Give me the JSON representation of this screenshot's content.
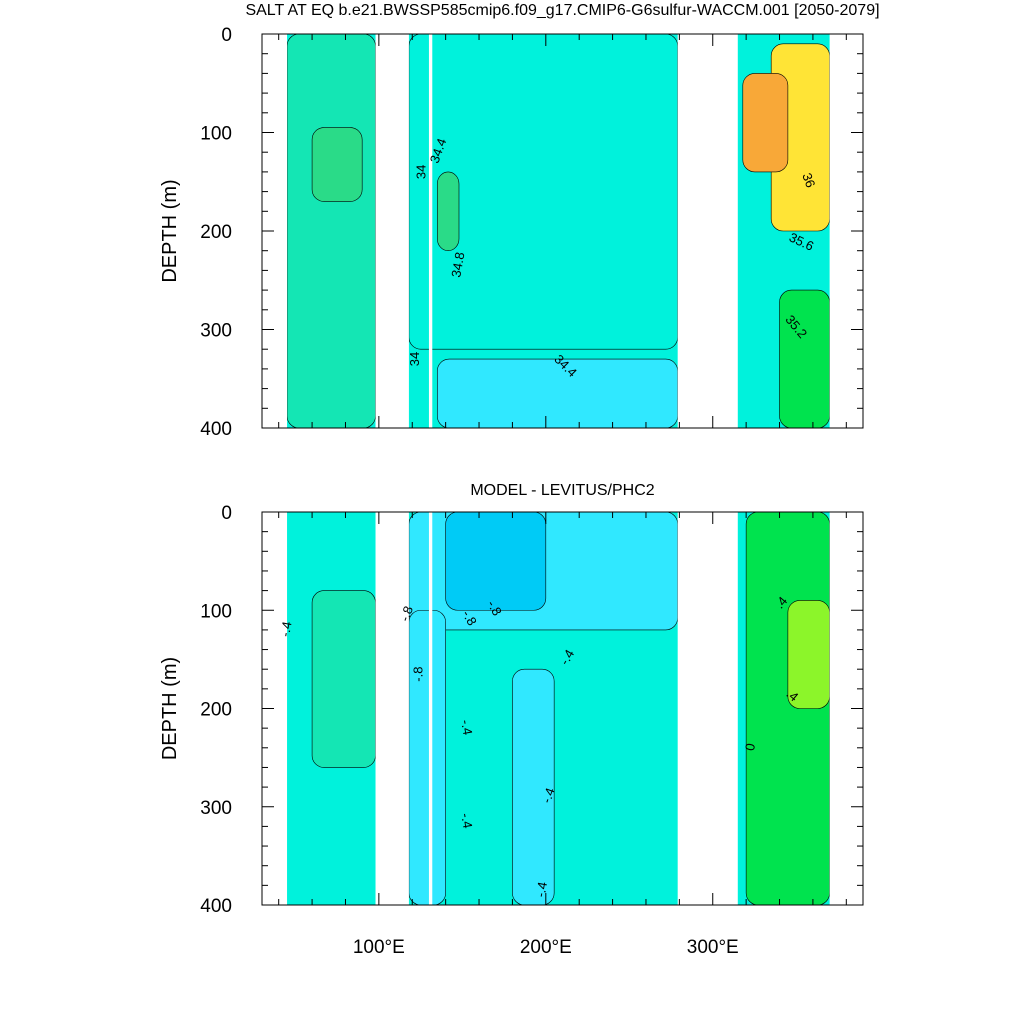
{
  "chart_data": [
    {
      "type": "heatmap",
      "title": "SALT AT EQ b.e21.BWSSP585cmip6.f09_g17.CMIP6-G6sulfur-WACCM.001 [2050-2079]",
      "xlabel": "",
      "ylabel": "DEPTH (m)",
      "xlim": [
        30,
        390
      ],
      "ylim": [
        400,
        0
      ],
      "x_ticks": [
        {
          "v": 100,
          "t": "100"
        },
        {
          "v": 200,
          "t": "200"
        },
        {
          "v": 300,
          "t": "300"
        }
      ],
      "y_ticks": [
        {
          "v": 0,
          "t": "0"
        },
        {
          "v": 100,
          "t": "100"
        },
        {
          "v": 200,
          "t": "200"
        },
        {
          "v": 300,
          "t": "300"
        },
        {
          "v": 400,
          "t": "400"
        }
      ],
      "show_x_tick_labels": false,
      "land_gaps_lon": [
        [
          30,
          45
        ],
        [
          98,
          118
        ],
        [
          130,
          132
        ],
        [
          279,
          315
        ],
        [
          370,
          390
        ]
      ],
      "base_color": "#00f2dc",
      "regions": [
        {
          "name": "western-indian-background",
          "color": "#14e6b4",
          "lon": [
            45,
            98
          ],
          "depth": [
            0,
            400
          ]
        },
        {
          "name": "indian-high-salinity-core",
          "color": "#2adb88",
          "lon": [
            60,
            90
          ],
          "depth": [
            95,
            170
          ]
        },
        {
          "name": "pacific-upper-layer",
          "color": "#00f2dc",
          "lon": [
            118,
            279
          ],
          "depth": [
            0,
            320
          ]
        },
        {
          "name": "pacific-deep-layer",
          "color": "#30e8ff",
          "lon": [
            135,
            279
          ],
          "depth": [
            330,
            400
          ]
        },
        {
          "name": "pacific-western-core",
          "color": "#2adb88",
          "lon": [
            135,
            148
          ],
          "depth": [
            140,
            220
          ]
        },
        {
          "name": "atlantic-green-deep",
          "color": "#00e34e",
          "lon": [
            340,
            370
          ],
          "depth": [
            260,
            400
          ]
        },
        {
          "name": "atlantic-yellow-upper",
          "color": "#ffe436",
          "lon": [
            335,
            370
          ],
          "depth": [
            10,
            200
          ]
        },
        {
          "name": "atlantic-orange-core",
          "color": "#f8a838",
          "lon": [
            318,
            345
          ],
          "depth": [
            40,
            140
          ]
        }
      ],
      "contour_labels": [
        {
          "text": "34.4",
          "lon": 138,
          "depth": 120,
          "rot": -70
        },
        {
          "text": "34",
          "lon": 128,
          "depth": 140,
          "rot": -90
        },
        {
          "text": "34.8",
          "lon": 150,
          "depth": 235,
          "rot": -80
        },
        {
          "text": "34",
          "lon": 124,
          "depth": 330,
          "rot": -90
        },
        {
          "text": "34.4",
          "lon": 210,
          "depth": 340,
          "rot": 45
        },
        {
          "text": "36",
          "lon": 355,
          "depth": 150,
          "rot": 70
        },
        {
          "text": "35.6",
          "lon": 352,
          "depth": 215,
          "rot": 25
        },
        {
          "text": "35.2",
          "lon": 348,
          "depth": 300,
          "rot": 50
        }
      ]
    },
    {
      "type": "heatmap",
      "title": "MODEL - LEVITUS/PHC2",
      "xlabel": "",
      "ylabel": "DEPTH (m)",
      "xlim": [
        30,
        390
      ],
      "ylim": [
        400,
        0
      ],
      "x_ticks": [
        {
          "v": 100,
          "t": "100"
        },
        {
          "v": 200,
          "t": "200"
        },
        {
          "v": 300,
          "t": "300"
        }
      ],
      "y_ticks": [
        {
          "v": 0,
          "t": "0"
        },
        {
          "v": 100,
          "t": "100"
        },
        {
          "v": 200,
          "t": "200"
        },
        {
          "v": 300,
          "t": "300"
        },
        {
          "v": 400,
          "t": "400"
        }
      ],
      "show_x_tick_labels": true,
      "x_tick_suffix": "°E",
      "land_gaps_lon": [
        [
          30,
          45
        ],
        [
          98,
          118
        ],
        [
          130,
          132
        ],
        [
          279,
          315
        ],
        [
          370,
          390
        ]
      ],
      "base_color": "#00f2dc",
      "regions": [
        {
          "name": "indian-anomaly-core",
          "color": "#14e6b4",
          "lon": [
            60,
            98
          ],
          "depth": [
            80,
            260
          ]
        },
        {
          "name": "pacific-negative-upper",
          "color": "#30e8ff",
          "lon": [
            118,
            279
          ],
          "depth": [
            0,
            120
          ]
        },
        {
          "name": "pacific-strong-negative",
          "color": "#00cbf6",
          "lon": [
            140,
            200
          ],
          "depth": [
            0,
            100
          ]
        },
        {
          "name": "pacific-western-column",
          "color": "#30e8ff",
          "lon": [
            118,
            140
          ],
          "depth": [
            100,
            400
          ]
        },
        {
          "name": "pacific-central-column",
          "color": "#30e8ff",
          "lon": [
            180,
            205
          ],
          "depth": [
            160,
            400
          ]
        },
        {
          "name": "atlantic-green",
          "color": "#00e34e",
          "lon": [
            320,
            370
          ],
          "depth": [
            0,
            400
          ]
        },
        {
          "name": "atlantic-bright-core",
          "color": "#8cf52a",
          "lon": [
            345,
            370
          ],
          "depth": [
            90,
            200
          ]
        }
      ],
      "contour_labels": [
        {
          "text": "-.4",
          "lon": 47,
          "depth": 120,
          "rot": -80
        },
        {
          "text": "-.8",
          "lon": 119,
          "depth": 105,
          "rot": -70
        },
        {
          "text": "-.8",
          "lon": 152,
          "depth": 110,
          "rot": 60
        },
        {
          "text": "-.8",
          "lon": 167,
          "depth": 100,
          "rot": 60
        },
        {
          "text": "-.8",
          "lon": 126,
          "depth": 165,
          "rot": -90
        },
        {
          "text": "-.4",
          "lon": 215,
          "depth": 150,
          "rot": -60
        },
        {
          "text": "-.4",
          "lon": 150,
          "depth": 220,
          "rot": 80
        },
        {
          "text": "-.4",
          "lon": 204,
          "depth": 290,
          "rot": -70
        },
        {
          "text": "-.4",
          "lon": 150,
          "depth": 315,
          "rot": 80
        },
        {
          "text": "-.4",
          "lon": 200,
          "depth": 385,
          "rot": -80
        },
        {
          "text": ".4",
          "lon": 343,
          "depth": 95,
          "rot": -50
        },
        {
          "text": ".4",
          "lon": 346,
          "depth": 190,
          "rot": 40
        },
        {
          "text": "0",
          "lon": 325,
          "depth": 240,
          "rot": -80
        }
      ]
    }
  ]
}
